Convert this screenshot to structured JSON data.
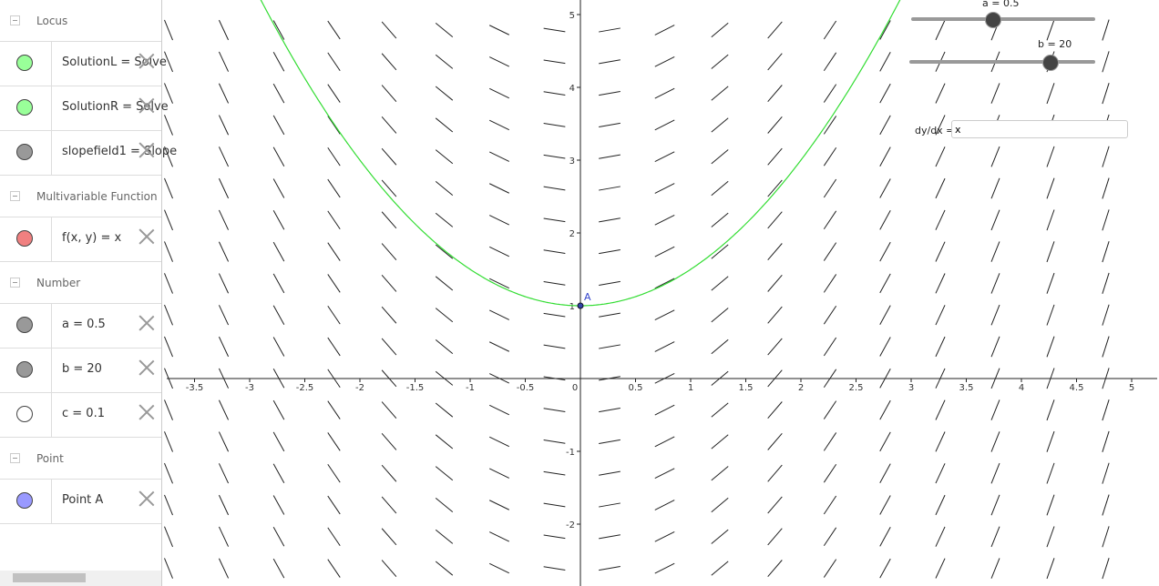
{
  "algebra_panel": {
    "groups": [
      {
        "title": "Locus",
        "items": [
          {
            "text": "SolutionL = Solve",
            "color": "#99ff99"
          },
          {
            "text": "SolutionR = Solve",
            "color": "#99ff99"
          },
          {
            "text": "slopefield1 = Slope",
            "color": "#999999"
          }
        ]
      },
      {
        "title": "Multivariable Function",
        "items": [
          {
            "text": "f(x, y) = x",
            "color": "#f08080"
          }
        ]
      },
      {
        "title": "Number",
        "items": [
          {
            "text": "a = 0.5",
            "color": "#999999"
          },
          {
            "text": "b = 20",
            "color": "#999999"
          },
          {
            "text": "c = 0.1",
            "color": "#ffffff"
          }
        ]
      },
      {
        "title": "Point",
        "items": [
          {
            "text": "Point A",
            "color": "#9999ff"
          }
        ]
      }
    ]
  },
  "graphics": {
    "xticks": [
      -3.5,
      -3,
      -2.5,
      -2,
      -1.5,
      -1,
      -0.5,
      0,
      0.5,
      1,
      1.5,
      2,
      2.5,
      3,
      3.5,
      4,
      4.5,
      5
    ],
    "yticks": [
      -2,
      -1,
      1,
      2,
      3,
      4,
      5
    ],
    "point": {
      "label": "A",
      "x": 0,
      "y": 1
    },
    "curve_coefficient": 0.5,
    "sliders": [
      {
        "label": "a = 0.5"
      },
      {
        "label": "b = 20"
      }
    ],
    "input": {
      "label": "dy/dx =",
      "value": "x"
    }
  }
}
